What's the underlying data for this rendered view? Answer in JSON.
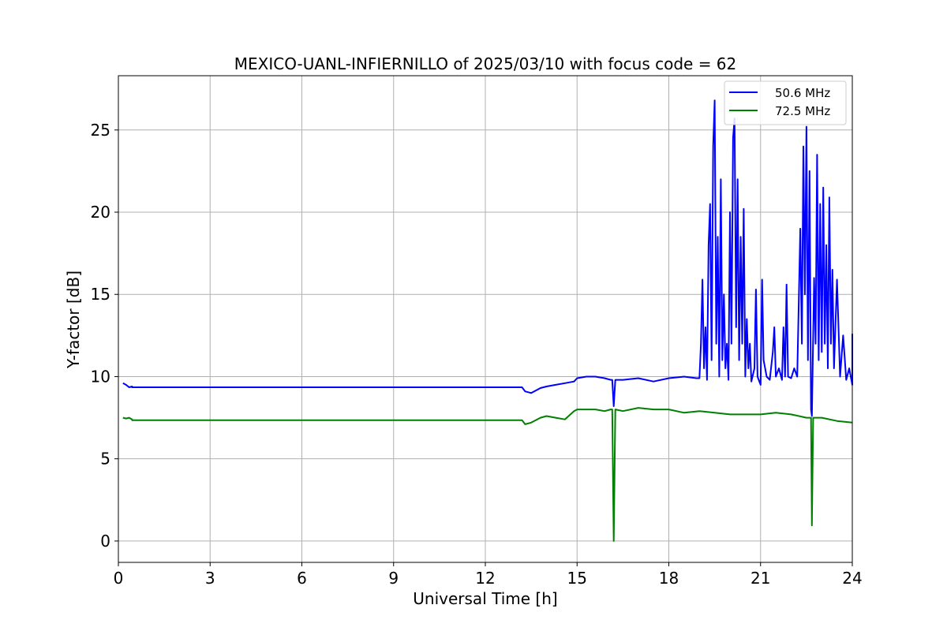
{
  "chart_data": {
    "type": "line",
    "title": "MEXICO-UANL-INFIERNILLO of 2025/03/10 with focus code = 62",
    "xlabel": "Universal Time [h]",
    "ylabel": "Y-factor [dB]",
    "xlim": [
      0,
      24
    ],
    "ylim": [
      -1.3,
      28.3
    ],
    "xticks": [
      0,
      3,
      6,
      9,
      12,
      15,
      18,
      21,
      24
    ],
    "yticks": [
      0,
      5,
      10,
      15,
      20,
      25
    ],
    "grid": true,
    "legend_position": "top-right",
    "series": [
      {
        "name": "50.6 MHz",
        "color": "#0000ff",
        "points": [
          [
            0.15,
            9.6
          ],
          [
            0.25,
            9.5
          ],
          [
            0.35,
            9.35
          ],
          [
            0.45,
            9.4
          ],
          [
            0.45,
            9.35
          ],
          [
            13.2,
            9.35
          ],
          [
            13.3,
            9.1
          ],
          [
            13.5,
            9.0
          ],
          [
            13.8,
            9.3
          ],
          [
            14.0,
            9.4
          ],
          [
            14.3,
            9.5
          ],
          [
            14.6,
            9.6
          ],
          [
            14.9,
            9.7
          ],
          [
            15.0,
            9.9
          ],
          [
            15.3,
            10.0
          ],
          [
            15.6,
            10.0
          ],
          [
            15.9,
            9.9
          ],
          [
            16.1,
            9.8
          ],
          [
            16.15,
            9.8
          ],
          [
            16.2,
            8.2
          ],
          [
            16.25,
            9.8
          ],
          [
            16.5,
            9.8
          ],
          [
            17.0,
            9.9
          ],
          [
            17.5,
            9.7
          ],
          [
            18.0,
            9.9
          ],
          [
            18.5,
            10.0
          ],
          [
            18.9,
            9.9
          ],
          [
            19.0,
            9.9
          ],
          [
            19.05,
            12.0
          ],
          [
            19.1,
            15.9
          ],
          [
            19.15,
            10.5
          ],
          [
            19.2,
            13.0
          ],
          [
            19.25,
            9.8
          ],
          [
            19.3,
            18.0
          ],
          [
            19.35,
            20.5
          ],
          [
            19.4,
            11.0
          ],
          [
            19.45,
            24.0
          ],
          [
            19.5,
            26.8
          ],
          [
            19.55,
            12.0
          ],
          [
            19.6,
            18.5
          ],
          [
            19.65,
            10.0
          ],
          [
            19.7,
            22.0
          ],
          [
            19.75,
            11.0
          ],
          [
            19.8,
            15.0
          ],
          [
            19.85,
            10.5
          ],
          [
            19.9,
            12.0
          ],
          [
            19.95,
            9.8
          ],
          [
            20.0,
            20.0
          ],
          [
            20.05,
            12.0
          ],
          [
            20.1,
            24.5
          ],
          [
            20.15,
            25.7
          ],
          [
            20.2,
            13.0
          ],
          [
            20.25,
            22.0
          ],
          [
            20.3,
            11.0
          ],
          [
            20.35,
            18.5
          ],
          [
            20.4,
            12.0
          ],
          [
            20.45,
            20.2
          ],
          [
            20.5,
            10.0
          ],
          [
            20.55,
            13.5
          ],
          [
            20.6,
            10.5
          ],
          [
            20.65,
            12.0
          ],
          [
            20.7,
            9.7
          ],
          [
            20.8,
            10.5
          ],
          [
            20.85,
            15.3
          ],
          [
            20.9,
            10.0
          ],
          [
            21.0,
            9.5
          ],
          [
            21.05,
            15.9
          ],
          [
            21.1,
            11.0
          ],
          [
            21.2,
            10.0
          ],
          [
            21.3,
            9.8
          ],
          [
            21.4,
            11.5
          ],
          [
            21.45,
            13.0
          ],
          [
            21.5,
            10.0
          ],
          [
            21.6,
            10.5
          ],
          [
            21.7,
            9.8
          ],
          [
            21.75,
            13.0
          ],
          [
            21.8,
            10.0
          ],
          [
            21.85,
            15.6
          ],
          [
            21.9,
            10.0
          ],
          [
            22.0,
            9.9
          ],
          [
            22.1,
            10.5
          ],
          [
            22.2,
            10.0
          ],
          [
            22.3,
            19.0
          ],
          [
            22.35,
            12.0
          ],
          [
            22.4,
            24.0
          ],
          [
            22.45,
            15.0
          ],
          [
            22.5,
            25.2
          ],
          [
            22.55,
            11.0
          ],
          [
            22.6,
            22.5
          ],
          [
            22.65,
            8.0
          ],
          [
            22.68,
            7.6
          ],
          [
            22.7,
            10.0
          ],
          [
            22.75,
            16.0
          ],
          [
            22.8,
            12.0
          ],
          [
            22.85,
            23.5
          ],
          [
            22.9,
            11.0
          ],
          [
            22.95,
            20.5
          ],
          [
            23.0,
            11.5
          ],
          [
            23.05,
            21.5
          ],
          [
            23.1,
            12.0
          ],
          [
            23.15,
            18.0
          ],
          [
            23.2,
            10.5
          ],
          [
            23.25,
            20.9
          ],
          [
            23.3,
            12.0
          ],
          [
            23.35,
            16.5
          ],
          [
            23.4,
            10.5
          ],
          [
            23.5,
            15.9
          ],
          [
            23.6,
            10.0
          ],
          [
            23.7,
            12.5
          ],
          [
            23.8,
            9.8
          ],
          [
            23.9,
            10.5
          ],
          [
            24.0,
            9.5
          ],
          [
            24.0,
            12.6
          ]
        ]
      },
      {
        "name": "72.5 MHz",
        "color": "#008000",
        "points": [
          [
            0.15,
            7.5
          ],
          [
            0.25,
            7.45
          ],
          [
            0.35,
            7.5
          ],
          [
            0.45,
            7.4
          ],
          [
            0.45,
            7.35
          ],
          [
            13.2,
            7.35
          ],
          [
            13.3,
            7.1
          ],
          [
            13.5,
            7.2
          ],
          [
            13.8,
            7.5
          ],
          [
            14.0,
            7.6
          ],
          [
            14.3,
            7.5
          ],
          [
            14.6,
            7.4
          ],
          [
            14.9,
            7.9
          ],
          [
            15.0,
            8.0
          ],
          [
            15.3,
            8.0
          ],
          [
            15.6,
            8.0
          ],
          [
            15.9,
            7.9
          ],
          [
            16.1,
            8.0
          ],
          [
            16.15,
            8.0
          ],
          [
            16.2,
            0.0
          ],
          [
            16.25,
            8.0
          ],
          [
            16.5,
            7.9
          ],
          [
            17.0,
            8.1
          ],
          [
            17.5,
            8.0
          ],
          [
            18.0,
            8.0
          ],
          [
            18.5,
            7.8
          ],
          [
            19.0,
            7.9
          ],
          [
            19.5,
            7.8
          ],
          [
            20.0,
            7.7
          ],
          [
            20.5,
            7.7
          ],
          [
            21.0,
            7.7
          ],
          [
            21.5,
            7.8
          ],
          [
            22.0,
            7.7
          ],
          [
            22.5,
            7.5
          ],
          [
            22.65,
            7.5
          ],
          [
            22.68,
            0.95
          ],
          [
            22.72,
            7.5
          ],
          [
            23.0,
            7.5
          ],
          [
            23.5,
            7.3
          ],
          [
            24.0,
            7.2
          ]
        ]
      }
    ]
  }
}
